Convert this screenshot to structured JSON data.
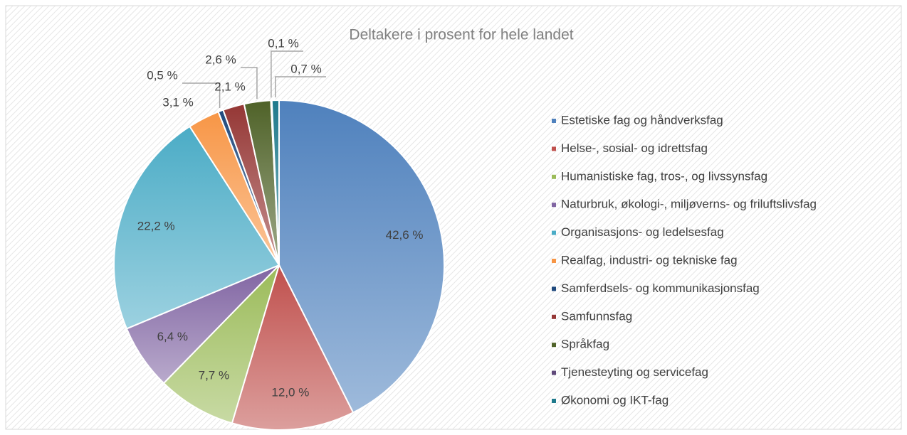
{
  "chart_data": {
    "type": "pie",
    "title": "Deltakere i prosent for hele landet",
    "categories": [
      "Estetiske fag og håndverksfag",
      "Helse-, sosial- og idrettsfag",
      "Humanistiske fag, tros-, og livssynsfag",
      "Naturbruk, økologi-, miljøverns- og friluftslivsfag",
      "Organisasjons- og ledelsesfag",
      "Realfag, industri- og tekniske fag",
      "Samferdsels- og kommunikasjonsfag",
      "Samfunnsfag",
      "Språkfag",
      "Tjenesteyting og servicefag",
      "Økonomi og IKT-fag"
    ],
    "values": [
      42.6,
      12.0,
      7.7,
      6.4,
      22.2,
      3.1,
      0.5,
      2.1,
      2.6,
      0.1,
      0.7
    ],
    "value_labels": [
      "42,6 %",
      "12,0 %",
      "7,7 %",
      "6,4 %",
      "22,2 %",
      "3,1 %",
      "0,5 %",
      "2,1 %",
      "2,6 %",
      "0,1 %",
      "0,7 %"
    ],
    "colors": [
      "#4f81bd",
      "#c0504d",
      "#9bbb59",
      "#8064a2",
      "#4bacc6",
      "#f79646",
      "#1f497d",
      "#953735",
      "#4f6228",
      "#5f497a",
      "#1f7a8c"
    ],
    "legend": "right"
  }
}
